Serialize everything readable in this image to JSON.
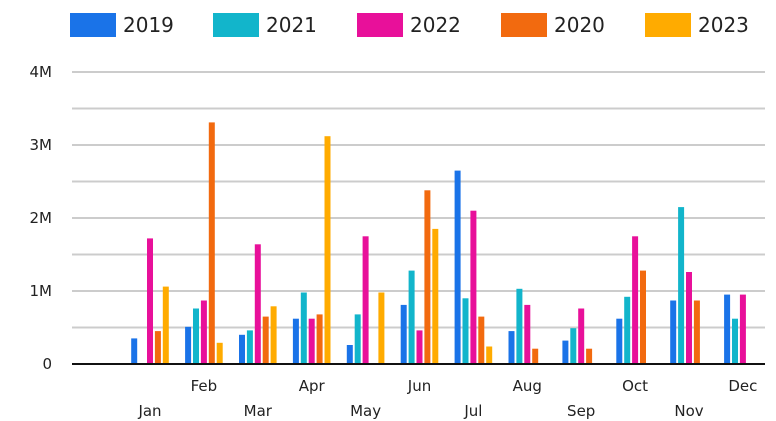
{
  "chart_data": {
    "type": "bar",
    "title": "",
    "xlabel": "",
    "ylabel": "",
    "ylim": [
      0,
      4000000
    ],
    "y_ticks": [
      {
        "value": 0,
        "label": "0"
      },
      {
        "value": 1000000,
        "label": "1M"
      },
      {
        "value": 2000000,
        "label": "2M"
      },
      {
        "value": 3000000,
        "label": "3M"
      },
      {
        "value": 4000000,
        "label": "4M"
      }
    ],
    "grid": true,
    "legend_position": "top",
    "categories": [
      "Jan",
      "Feb",
      "Mar",
      "Apr",
      "May",
      "Jun",
      "Jul",
      "Aug",
      "Sep",
      "Oct",
      "Nov",
      "Dec"
    ],
    "series": [
      {
        "name": "2019",
        "color": "#1a73e8",
        "values": [
          350000,
          510000,
          400000,
          620000,
          260000,
          810000,
          2650000,
          450000,
          320000,
          620000,
          870000,
          950000
        ]
      },
      {
        "name": "2021",
        "color": "#12b5cb",
        "values": [
          0,
          760000,
          460000,
          980000,
          680000,
          1280000,
          900000,
          1030000,
          490000,
          920000,
          2150000,
          620000
        ]
      },
      {
        "name": "2022",
        "color": "#e8109a",
        "values": [
          1720000,
          870000,
          1640000,
          620000,
          1750000,
          460000,
          2100000,
          810000,
          760000,
          1750000,
          1260000,
          950000
        ]
      },
      {
        "name": "2020",
        "color": "#f26a0f",
        "values": [
          450000,
          3310000,
          650000,
          680000,
          0,
          2380000,
          650000,
          210000,
          210000,
          1280000,
          870000,
          0
        ]
      },
      {
        "name": "2023",
        "color": "#ffab00",
        "values": [
          1060000,
          290000,
          790000,
          3120000,
          980000,
          1850000,
          240000,
          0,
          0,
          0,
          0,
          0
        ]
      }
    ]
  }
}
